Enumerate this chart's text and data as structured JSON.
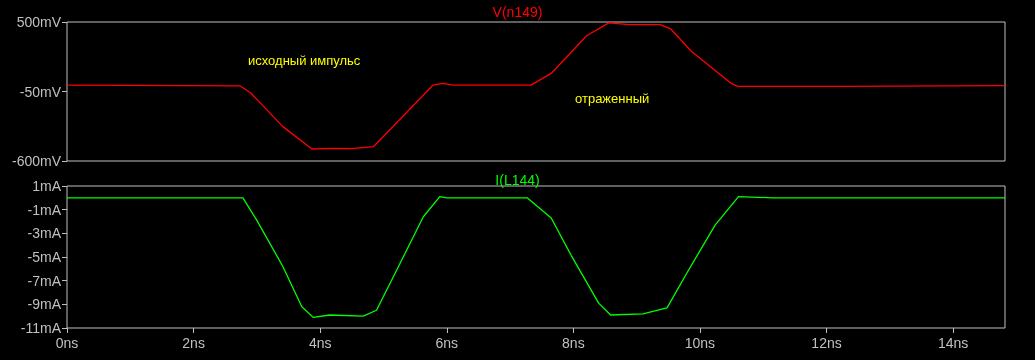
{
  "chart_data": [
    {
      "type": "line",
      "tick_labels": "y",
      "grid": false,
      "xlim": [
        0,
        14.82
      ],
      "ylim": [
        -600,
        500
      ],
      "yticks": [
        {
          "value": -600,
          "label": "-600mV"
        },
        {
          "value": -50,
          "label": "-50mV"
        },
        {
          "value": 500,
          "label": "500mV"
        }
      ],
      "annotations": [
        "исходный импульс",
        "отраженный"
      ],
      "series": [
        {
          "name": "V(n149)",
          "color": "#ff0000",
          "x": [
            0,
            2.73,
            2.9,
            3.41,
            3.87,
            4.2,
            4.5,
            4.84,
            5.3,
            5.78,
            5.94,
            6.1,
            7.33,
            7.65,
            8.21,
            8.56,
            8.89,
            9.37,
            9.54,
            9.86,
            10.5,
            10.6,
            12.2,
            14.82
          ],
          "values": [
            0,
            -5,
            -60,
            -328,
            -505,
            -500,
            -502,
            -487,
            -250,
            0,
            14,
            0,
            0,
            93,
            391,
            493,
            479,
            480,
            445,
            270,
            12,
            -9,
            -9,
            -3
          ]
        }
      ]
    },
    {
      "type": "line",
      "grid": false,
      "xlim": [
        0,
        14.82
      ],
      "ylim": [
        -11,
        1
      ],
      "xticks": [
        {
          "value": 0,
          "label": "0ns"
        },
        {
          "value": 2,
          "label": "2ns"
        },
        {
          "value": 4,
          "label": "4ns"
        },
        {
          "value": 6,
          "label": "6ns"
        },
        {
          "value": 8,
          "label": "8ns"
        },
        {
          "value": 10,
          "label": "10ns"
        },
        {
          "value": 12,
          "label": "12ns"
        },
        {
          "value": 14,
          "label": "14ns"
        }
      ],
      "yticks": [
        {
          "value": -11,
          "label": "-11mA"
        },
        {
          "value": -9,
          "label": "-9mA"
        },
        {
          "value": -7,
          "label": "-7mA"
        },
        {
          "value": -5,
          "label": "-5mA"
        },
        {
          "value": -3,
          "label": "-3mA"
        },
        {
          "value": -1,
          "label": "-1mA"
        },
        {
          "value": 1,
          "label": "1mA"
        }
      ],
      "series": [
        {
          "name": "I(L144)",
          "color": "#00ff00",
          "x": [
            0,
            2.78,
            3.0,
            3.41,
            3.71,
            3.89,
            4.15,
            4.68,
            4.89,
            5.21,
            5.63,
            5.89,
            6.0,
            7.27,
            7.65,
            7.97,
            8.4,
            8.59,
            9.1,
            9.48,
            9.81,
            10.24,
            10.61,
            11.15,
            14.82
          ],
          "values": [
            0,
            0,
            -1.9,
            -5.8,
            -9.2,
            -10.1,
            -9.9,
            -10.0,
            -9.5,
            -6.1,
            -1.6,
            0.1,
            0,
            0,
            -1.7,
            -4.9,
            -8.9,
            -9.9,
            -9.8,
            -9.3,
            -6.2,
            -2.3,
            0.1,
            0,
            0
          ]
        }
      ]
    }
  ]
}
